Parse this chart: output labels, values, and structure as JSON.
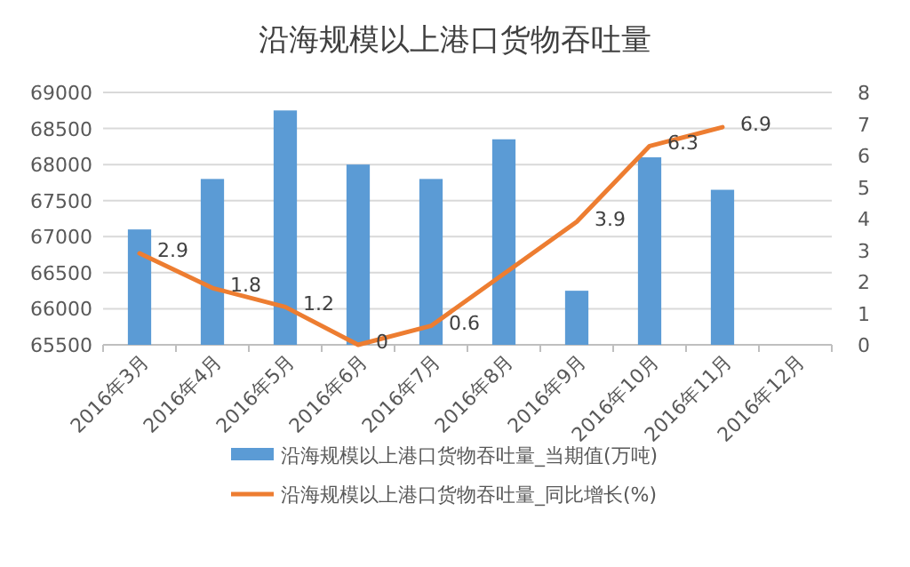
{
  "chart_data": {
    "type": "bar",
    "title": "沿海规模以上港口货物吞吐量",
    "categories": [
      "2016年3月",
      "2016年4月",
      "2016年5月",
      "2016年6月",
      "2016年7月",
      "2016年8月",
      "2016年9月",
      "2016年10月",
      "2016年11月",
      "2016年12月"
    ],
    "series": [
      {
        "name": "沿海规模以上港口货物吞吐量_当期值(万吨)",
        "color": "#5b9bd5",
        "values": [
          67100,
          67800,
          68750,
          68000,
          67800,
          68350,
          66250,
          68100,
          67650,
          null
        ]
      },
      {
        "name": "沿海规模以上港口货物吞吐量_同比增长(%)",
        "type": "line",
        "axis": "y2",
        "color": "#ed7d31",
        "values": [
          2.9,
          1.8,
          1.2,
          0,
          0.6,
          null,
          3.9,
          6.3,
          6.9,
          null
        ],
        "value_labels": [
          "2.9",
          "1.8",
          "1.2",
          "0",
          "0.6",
          null,
          "3.9",
          "6.3",
          "6.9",
          null
        ]
      }
    ],
    "ylim": [
      65500,
      69000
    ],
    "yticks": [
      65500,
      66000,
      66500,
      67000,
      67500,
      68000,
      68500,
      69000
    ],
    "y2lim": [
      0,
      8
    ],
    "y2ticks": [
      0,
      1,
      2,
      3,
      4,
      5,
      6,
      7,
      8
    ],
    "grid": "y",
    "legend": "bottom"
  }
}
